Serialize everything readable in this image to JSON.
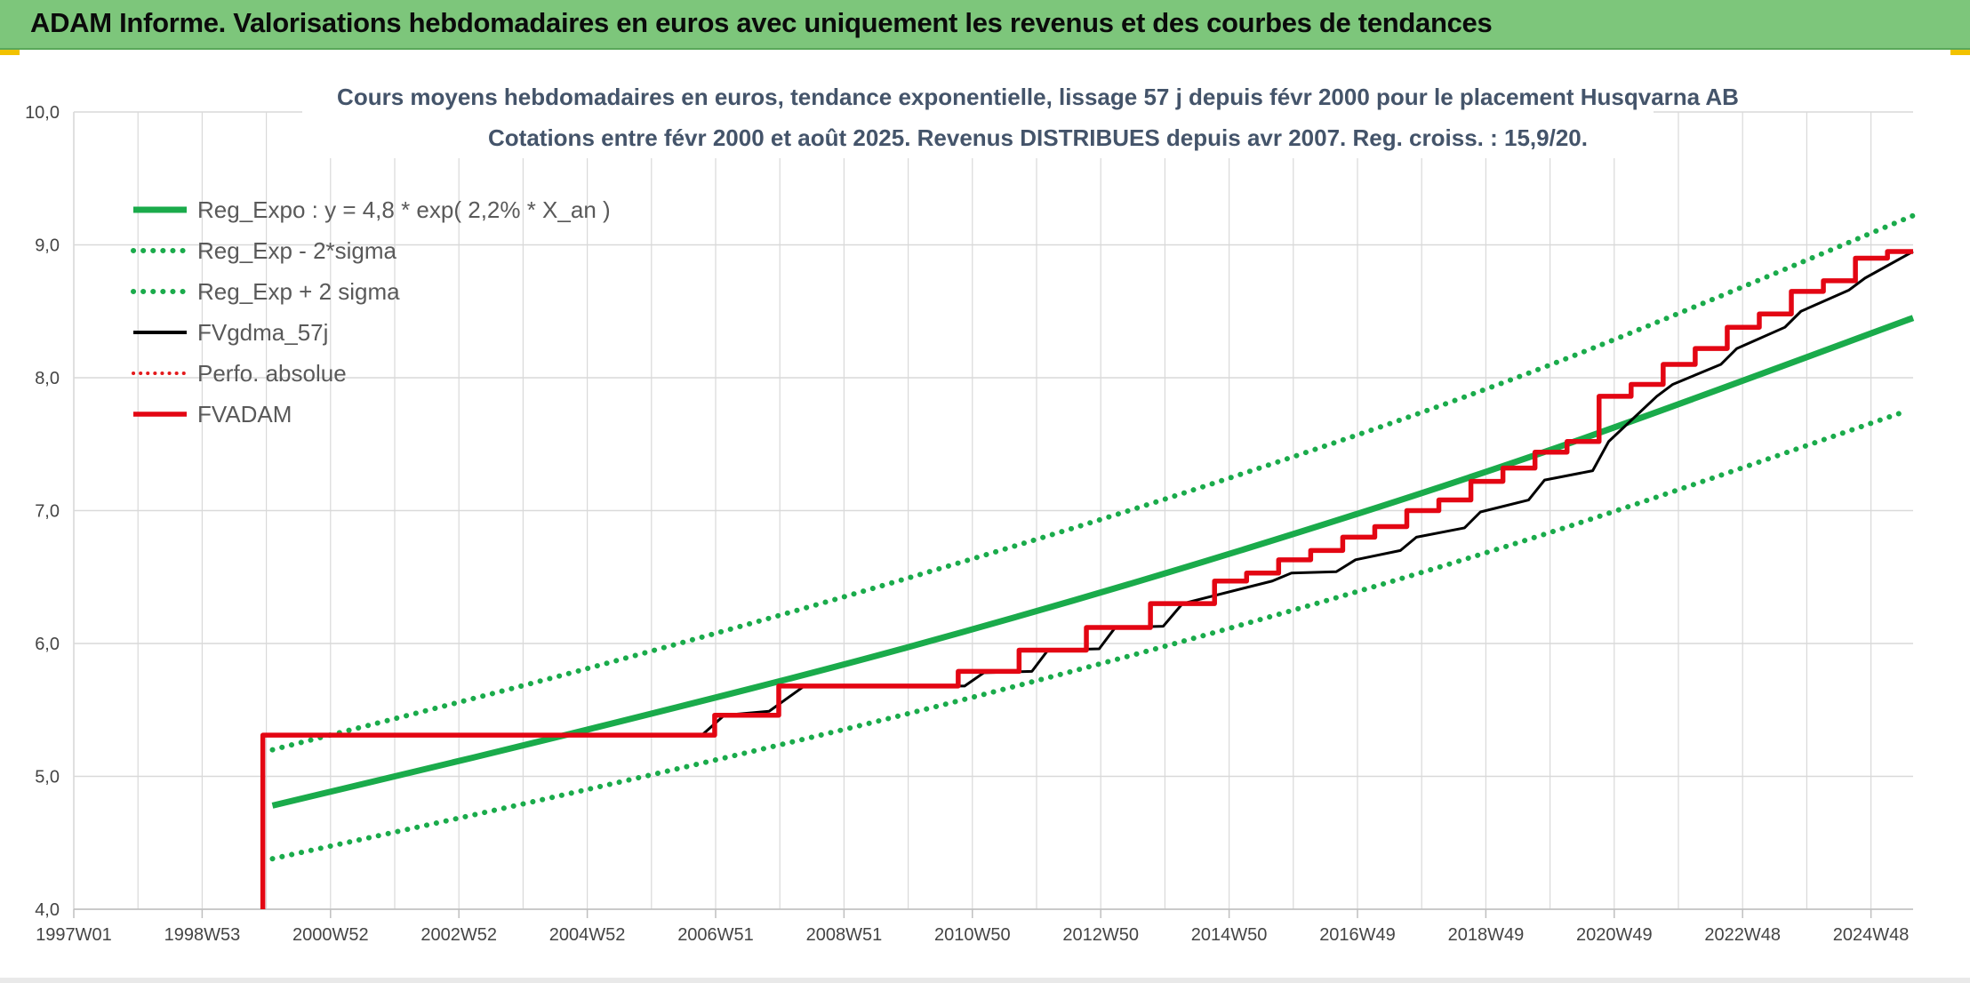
{
  "header": {
    "title": "ADAM Informe. Valorisations hebdomadaires en euros avec uniquement les revenus et des courbes de tendances"
  },
  "chart_data": {
    "type": "line",
    "title": "Cours moyens hebdomadaires en euros, tendance exponentielle, lissage 57 j depuis févr 2000 pour le placement Husqvarna AB",
    "subtitle": "Cotations entre févr 2000 et août 2025. Revenus DISTRIBUES depuis avr 2007. Reg. croiss. : 15,9/20.",
    "xlabel": "",
    "ylabel": "",
    "x_tick_labels": [
      "1997W01",
      "1998W53",
      "2000W52",
      "2002W52",
      "2004W52",
      "2006W51",
      "2008W51",
      "2010W50",
      "2012W50",
      "2014W50",
      "2016W49",
      "2018W49",
      "2020W49",
      "2022W48",
      "2024W48"
    ],
    "xlim": [
      1997.0,
      2025.7
    ],
    "y_tick_labels": [
      "4,0",
      "5,0",
      "6,0",
      "7,0",
      "8,0",
      "9,0",
      "10,0"
    ],
    "ylim": [
      4.0,
      10.0
    ],
    "grid": true,
    "legend_position": "top-left",
    "colors": {
      "reg_expo": "#1aab4b",
      "fvgdma": "#000000",
      "perfo": "#e31a1c",
      "fvadam": "#e30613",
      "grid": "#d9d9d9"
    },
    "series": [
      {
        "name": "Reg_Expo : y = 4,8 * exp( 2,2% *  X_an )",
        "style": "solid-green",
        "x": [
          2000.1,
          2005,
          2010,
          2015,
          2020,
          2025.7
        ],
        "y": [
          4.78,
          5.35,
          5.97,
          6.67,
          7.45,
          8.45
        ]
      },
      {
        "name": "Reg_Exp - 2*sigma",
        "style": "dotted-green",
        "x": [
          2000.1,
          2005,
          2010,
          2015,
          2020,
          2025.6
        ],
        "y": [
          4.38,
          4.9,
          5.47,
          6.11,
          6.83,
          7.75
        ]
      },
      {
        "name": "Reg_Exp + 2 sigma",
        "style": "dotted-green",
        "x": [
          2000.1,
          2005,
          2010,
          2015,
          2020,
          2025.7
        ],
        "y": [
          5.2,
          5.81,
          6.49,
          7.24,
          8.09,
          9.22
        ]
      },
      {
        "name": "FVgdma_57j",
        "style": "solid-black-thin",
        "x": [
          2000.1,
          2006.8,
          2007.15,
          2007.85,
          2008.4,
          2010.9,
          2011.2,
          2011.95,
          2012.2,
          2013.0,
          2013.25,
          2014.0,
          2014.3,
          2015.7,
          2016.0,
          2016.7,
          2017.0,
          2017.7,
          2017.95,
          2018.7,
          2018.95,
          2019.7,
          2019.95,
          2020.7,
          2020.95,
          2021.7,
          2021.95,
          2022.7,
          2022.95,
          2023.7,
          2023.95,
          2024.7,
          2024.95,
          2025.7
        ],
        "y": [
          5.31,
          5.31,
          5.46,
          5.49,
          5.68,
          5.68,
          5.78,
          5.79,
          5.95,
          5.96,
          6.12,
          6.13,
          6.3,
          6.47,
          6.53,
          6.54,
          6.63,
          6.7,
          6.8,
          6.87,
          6.99,
          7.08,
          7.23,
          7.3,
          7.52,
          7.86,
          7.95,
          8.1,
          8.22,
          8.38,
          8.5,
          8.66,
          8.75,
          8.95
        ]
      },
      {
        "name": "Perfo. absolue",
        "style": "dotted-red",
        "x": [],
        "y": []
      },
      {
        "name": "FVADAM",
        "style": "solid-red-thick",
        "x": [
          1999.95,
          1999.95,
          2007.0,
          2007.0,
          2008.0,
          2008.0,
          2010.8,
          2010.8,
          2011.75,
          2011.75,
          2012.8,
          2012.8,
          2013.8,
          2013.8,
          2014.8,
          2014.8,
          2015.3,
          2015.3,
          2015.8,
          2015.8,
          2016.3,
          2016.3,
          2016.8,
          2016.8,
          2017.3,
          2017.3,
          2017.8,
          2017.8,
          2018.3,
          2018.3,
          2018.8,
          2018.8,
          2019.3,
          2019.3,
          2019.8,
          2019.8,
          2020.3,
          2020.3,
          2020.8,
          2020.8,
          2021.3,
          2021.3,
          2021.8,
          2021.8,
          2022.3,
          2022.3,
          2022.8,
          2022.8,
          2023.3,
          2023.3,
          2023.8,
          2023.8,
          2024.3,
          2024.3,
          2024.8,
          2024.8,
          2025.3,
          2025.3,
          2025.7
        ],
        "y": [
          4.0,
          5.31,
          5.31,
          5.46,
          5.46,
          5.68,
          5.68,
          5.79,
          5.79,
          5.95,
          5.95,
          6.12,
          6.12,
          6.3,
          6.3,
          6.47,
          6.47,
          6.53,
          6.53,
          6.63,
          6.63,
          6.7,
          6.7,
          6.8,
          6.8,
          6.88,
          6.88,
          7.0,
          7.0,
          7.08,
          7.08,
          7.22,
          7.22,
          7.32,
          7.32,
          7.44,
          7.44,
          7.52,
          7.52,
          7.86,
          7.86,
          7.95,
          7.95,
          8.1,
          8.1,
          8.22,
          8.22,
          8.38,
          8.38,
          8.48,
          8.48,
          8.65,
          8.65,
          8.73,
          8.73,
          8.9,
          8.9,
          8.95,
          8.95
        ]
      }
    ]
  }
}
